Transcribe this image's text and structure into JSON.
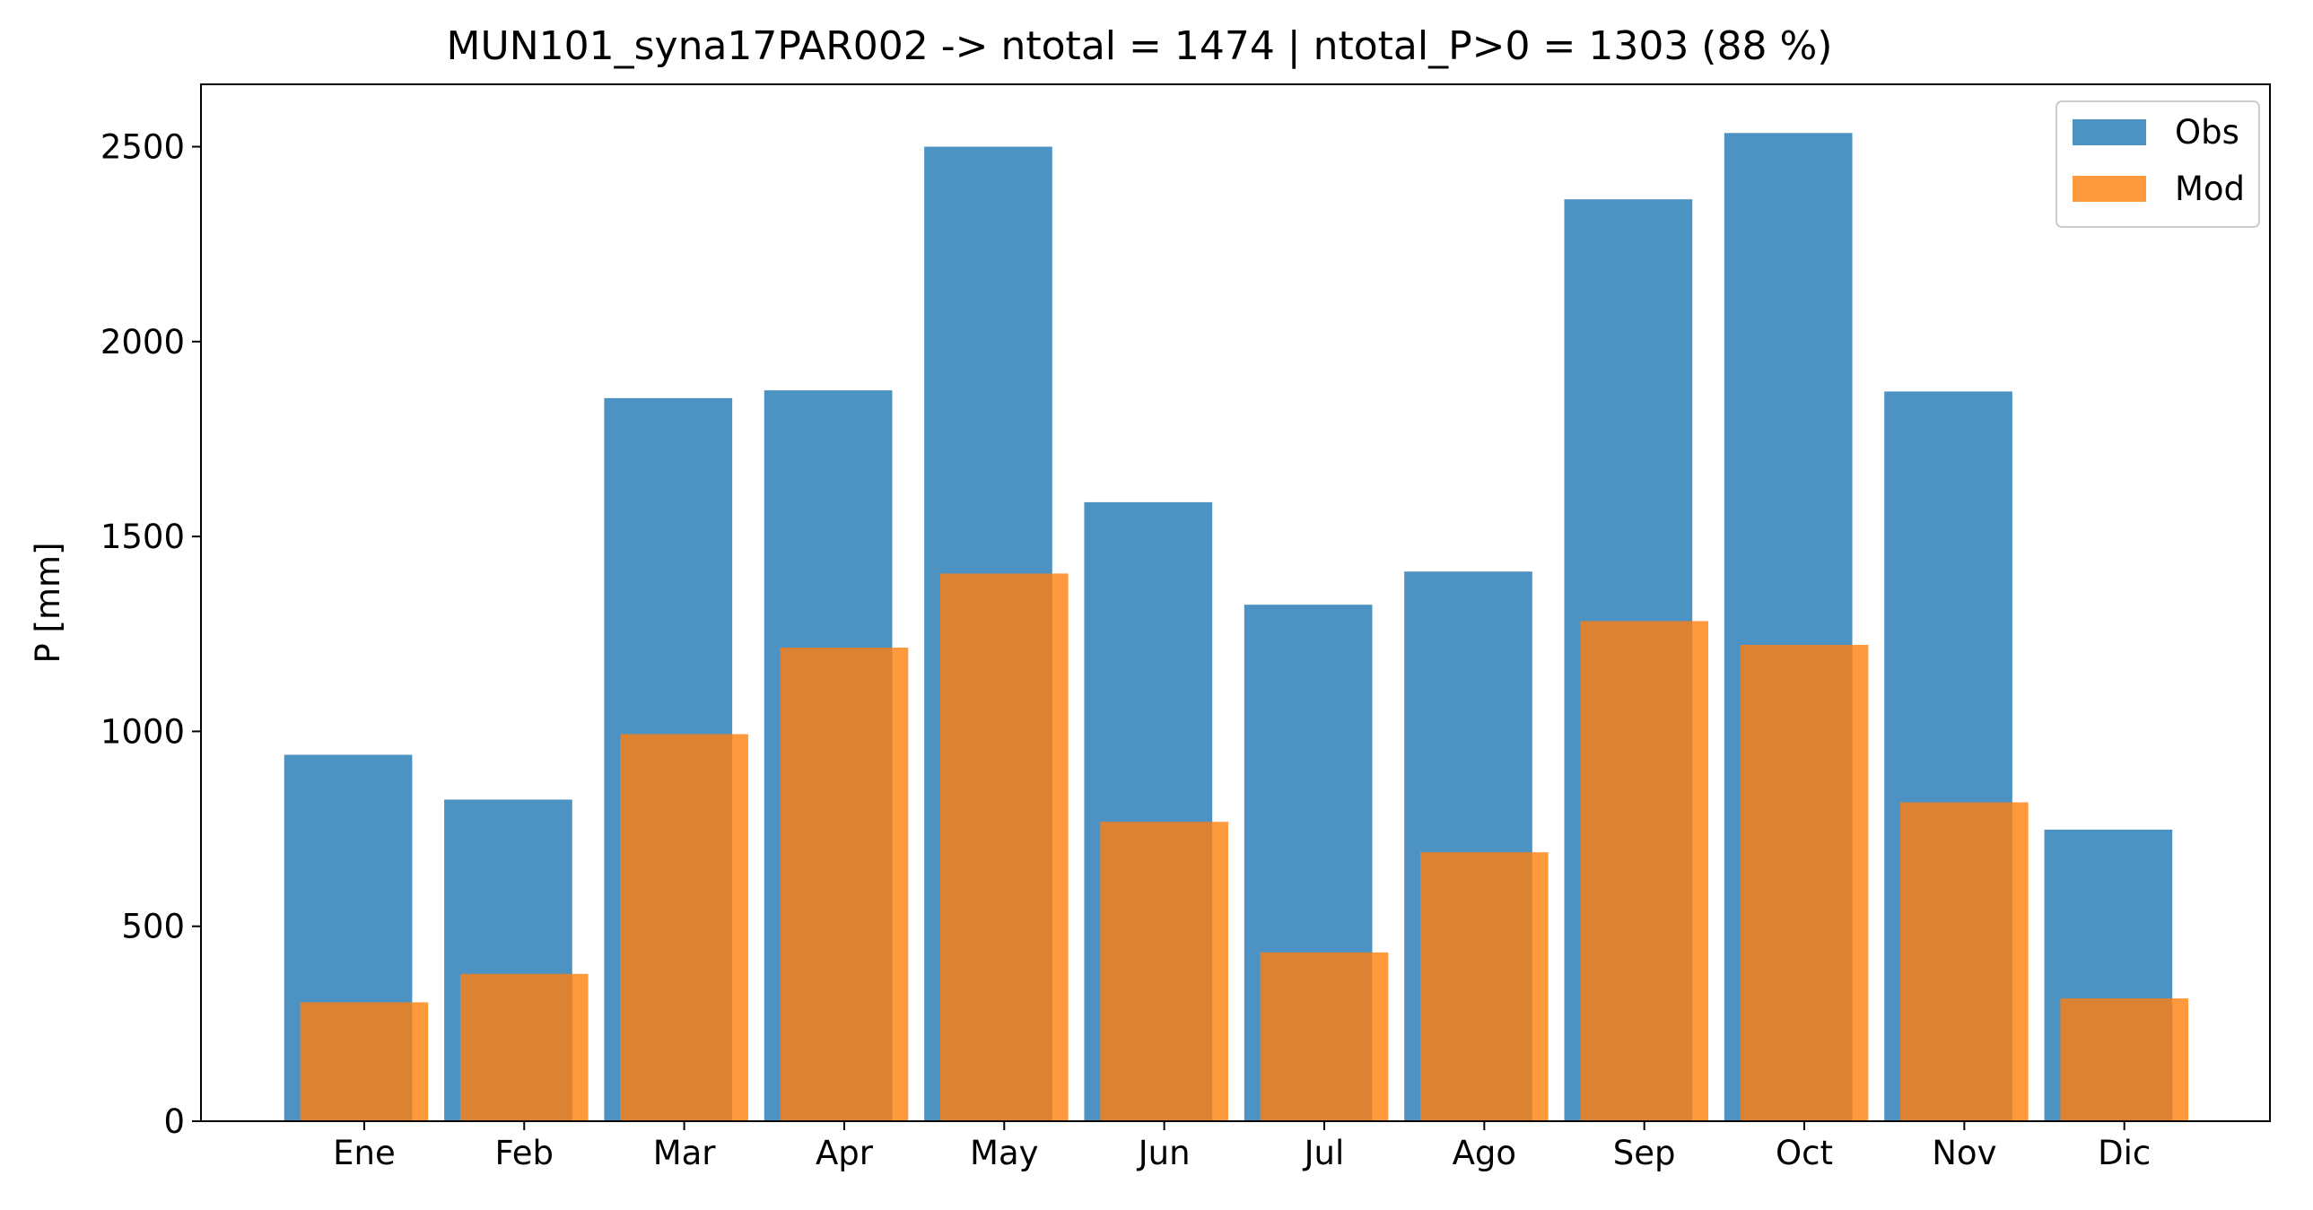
{
  "chart_data": {
    "type": "bar",
    "title": "MUN101_syna17PAR002 -> ntotal = 1474 | ntotal_P>0 = 1303 (88 %)",
    "xlabel": "",
    "ylabel": "P [mm]",
    "ylim": [
      0,
      2660
    ],
    "yticks": [
      0,
      500,
      1000,
      1500,
      2000,
      2500
    ],
    "grid": false,
    "legend_position": "top-right",
    "categories": [
      "Ene",
      "Feb",
      "Mar",
      "Apr",
      "May",
      "Jun",
      "Jul",
      "Ago",
      "Sep",
      "Oct",
      "Nov",
      "Dic"
    ],
    "series": [
      {
        "name": "Obs",
        "color": "#1f77b4",
        "opacity": 0.8,
        "values": [
          940,
          825,
          1855,
          1875,
          2500,
          1588,
          1325,
          1410,
          2365,
          2535,
          1872,
          748
        ]
      },
      {
        "name": "Mod",
        "color": "#ff7f0e",
        "opacity": 0.8,
        "values": [
          305,
          378,
          993,
          1215,
          1405,
          768,
          433,
          690,
          1283,
          1222,
          818,
          315
        ]
      }
    ]
  }
}
